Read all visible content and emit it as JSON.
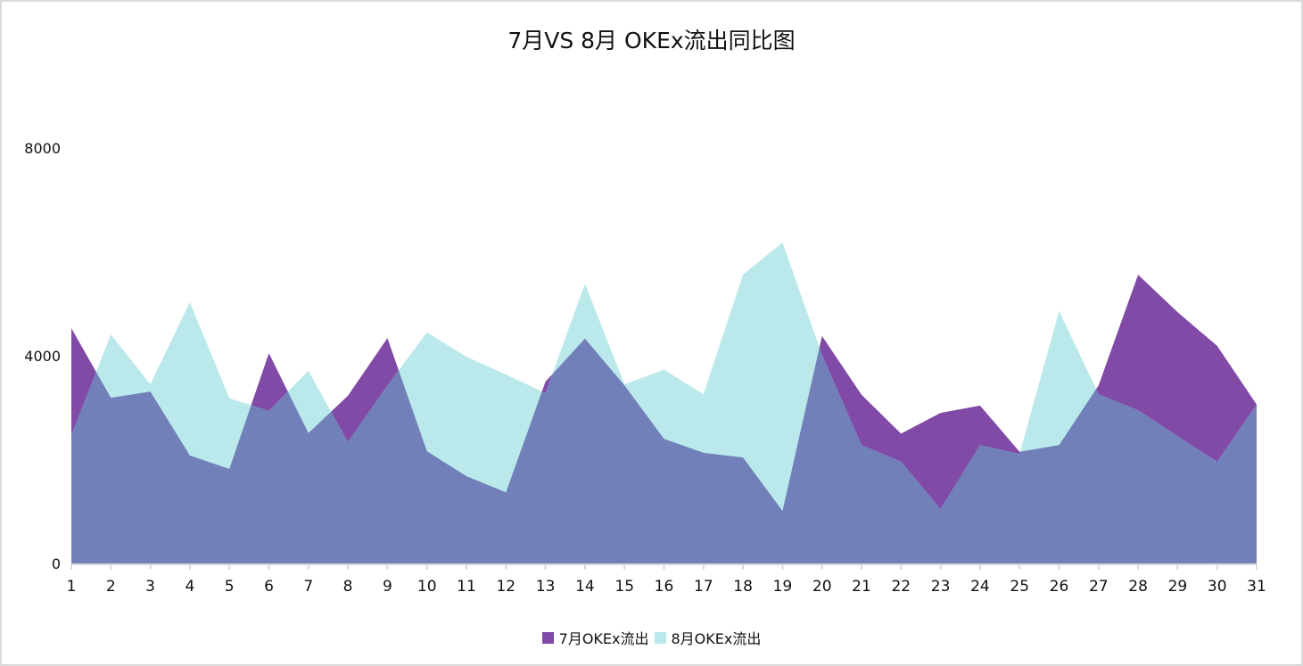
{
  "chart_data": {
    "type": "area",
    "title": "7月VS 8月 OKEx流出同比图",
    "xlabel": "",
    "ylabel": "",
    "x": [
      1,
      2,
      3,
      4,
      5,
      6,
      7,
      8,
      9,
      10,
      11,
      12,
      13,
      14,
      15,
      16,
      17,
      18,
      19,
      20,
      21,
      22,
      23,
      24,
      25,
      26,
      27,
      28,
      29,
      30,
      31
    ],
    "ylim": [
      0,
      8000
    ],
    "yticks": [
      0,
      4000,
      8000
    ],
    "grid": false,
    "legend_position": "bottom",
    "series": [
      {
        "name": "7月OKEx流出",
        "color": "#804aa6",
        "values": [
          4530,
          3190,
          3310,
          2080,
          1820,
          4050,
          2510,
          3230,
          4340,
          2160,
          1680,
          1370,
          3500,
          4330,
          3430,
          2400,
          2130,
          2040,
          1010,
          4380,
          3250,
          2500,
          2900,
          3040,
          2150,
          2280,
          3430,
          5560,
          4840,
          4190,
          3060
        ]
      },
      {
        "name": "8月OKEx流出",
        "color": "#bae8eb",
        "values": [
          2470,
          4410,
          3450,
          5030,
          3180,
          2940,
          3710,
          2340,
          3430,
          4450,
          3980,
          3640,
          3280,
          5390,
          3450,
          3730,
          3260,
          5560,
          6180,
          4020,
          2280,
          1960,
          1050,
          2280,
          2110,
          4860,
          3260,
          2950,
          2450,
          1960,
          3060
        ]
      }
    ],
    "overlap_color": "#7180b9"
  }
}
